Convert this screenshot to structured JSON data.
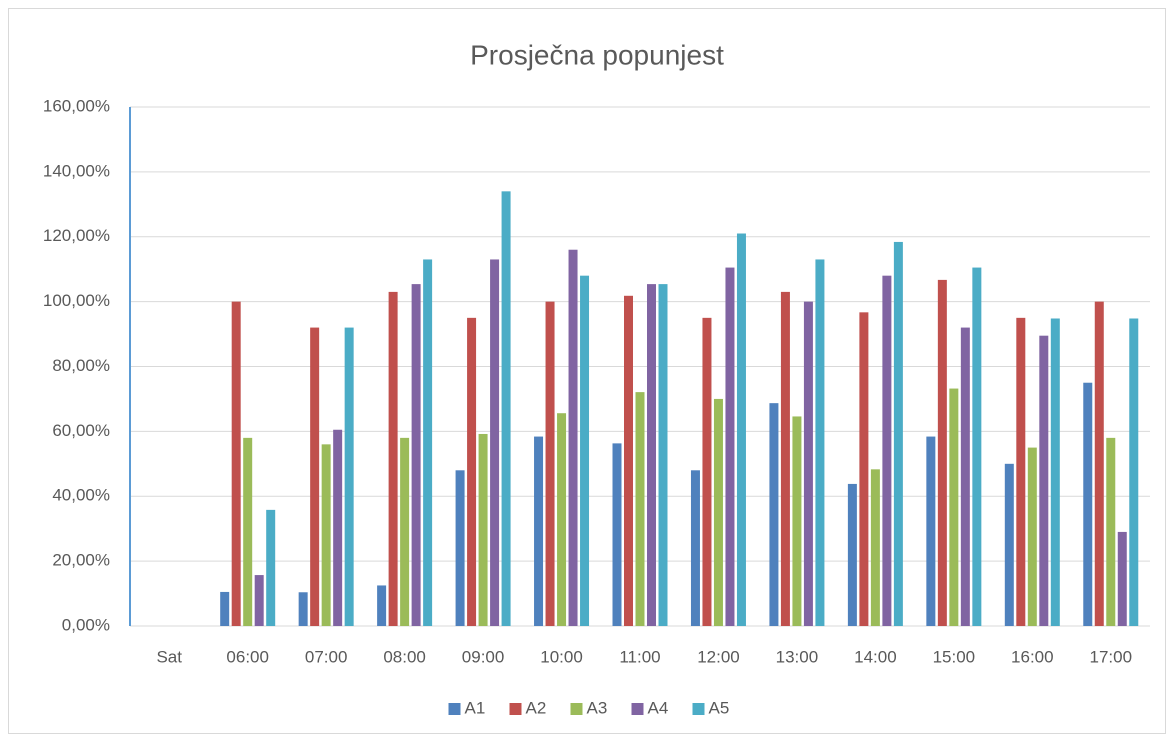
{
  "chart_data": {
    "type": "bar",
    "title": "Prosječna popunjest",
    "categories": [
      "Sat",
      "06:00",
      "07:00",
      "08:00",
      "09:00",
      "10:00",
      "11:00",
      "12:00",
      "13:00",
      "14:00",
      "15:00",
      "16:00",
      "17:00"
    ],
    "series": [
      {
        "name": "A1",
        "color": "#4f81bd",
        "values": [
          null,
          10.5,
          10.4,
          12.5,
          48,
          58.4,
          56.3,
          48,
          68.7,
          43.8,
          58.4,
          50,
          75
        ]
      },
      {
        "name": "A2",
        "color": "#c0504d",
        "values": [
          null,
          100,
          92,
          103,
          95,
          100,
          101.8,
          95,
          103,
          96.7,
          106.7,
          95,
          100
        ]
      },
      {
        "name": "A3",
        "color": "#9bbb59",
        "values": [
          null,
          58,
          56,
          58,
          59.2,
          65.6,
          72.1,
          70,
          64.6,
          48.3,
          73.2,
          55,
          58
        ]
      },
      {
        "name": "A4",
        "color": "#8064a2",
        "values": [
          null,
          15.7,
          60.5,
          105.4,
          113,
          116,
          105.4,
          110.5,
          100,
          108,
          92,
          89.5,
          29
        ]
      },
      {
        "name": "A5",
        "color": "#4bacc6",
        "values": [
          null,
          35.8,
          92,
          113,
          134,
          108,
          105.4,
          121,
          113,
          118.4,
          110.5,
          94.8,
          94.8
        ]
      }
    ],
    "ylim": [
      0,
      160
    ],
    "yticks": [
      {
        "value": 0,
        "label": "0,00%"
      },
      {
        "value": 20,
        "label": "20,00%"
      },
      {
        "value": 40,
        "label": "40,00%"
      },
      {
        "value": 60,
        "label": "60,00%"
      },
      {
        "value": 80,
        "label": "80,00%"
      },
      {
        "value": 100,
        "label": "100,00%"
      },
      {
        "value": 120,
        "label": "120,00%"
      },
      {
        "value": 140,
        "label": "140,00%"
      },
      {
        "value": 160,
        "label": "160,00%"
      }
    ],
    "grid": true,
    "legend": "bottom"
  }
}
